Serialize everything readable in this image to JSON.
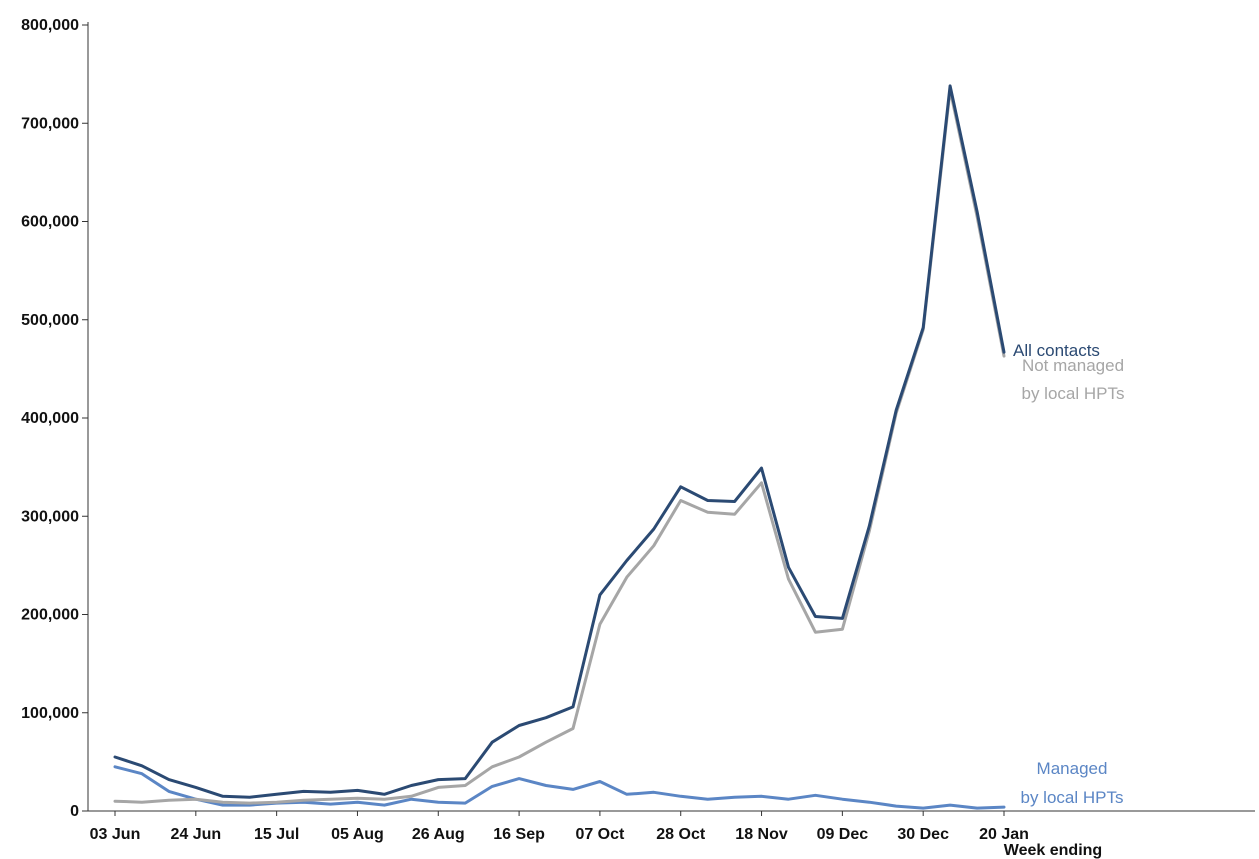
{
  "chart_data": {
    "type": "line",
    "title": "",
    "xlabel": "Week ending",
    "ylabel": "",
    "ylim": [
      0,
      800000
    ],
    "yticks": [
      0,
      100000,
      200000,
      300000,
      400000,
      500000,
      600000,
      700000,
      800000
    ],
    "ytick_labels": [
      "0",
      "100,000",
      "200,000",
      "300,000",
      "400,000",
      "500,000",
      "600,000",
      "700,000",
      "800,000"
    ],
    "x": [
      "03 Jun",
      "10 Jun",
      "17 Jun",
      "24 Jun",
      "01 Jul",
      "08 Jul",
      "15 Jul",
      "22 Jul",
      "29 Jul",
      "05 Aug",
      "12 Aug",
      "19 Aug",
      "26 Aug",
      "02 Sep",
      "09 Sep",
      "16 Sep",
      "23 Sep",
      "30 Sep",
      "07 Oct",
      "14 Oct",
      "21 Oct",
      "28 Oct",
      "04 Nov",
      "11 Nov",
      "18 Nov",
      "25 Nov",
      "02 Dec",
      "09 Dec",
      "16 Dec",
      "23 Dec",
      "30 Dec",
      "06 Jan",
      "13 Jan",
      "20 Jan"
    ],
    "xtick_labels": [
      "03 Jun",
      "24 Jun",
      "15 Jul",
      "05 Aug",
      "26 Aug",
      "16 Sep",
      "07 Oct",
      "28 Oct",
      "18 Nov",
      "09 Dec",
      "30 Dec",
      "20 Jan"
    ],
    "xtick_every": 3,
    "grid": false,
    "series": [
      {
        "name": "All contacts",
        "label": "All contacts",
        "color": "#2b4a73",
        "values": [
          55000,
          46000,
          32000,
          24000,
          15000,
          14000,
          17000,
          20000,
          19000,
          21000,
          17000,
          26000,
          32000,
          33000,
          70000,
          87000,
          95000,
          106000,
          220000,
          255000,
          287000,
          330000,
          316000,
          315000,
          349000,
          248000,
          198000,
          196000,
          290000,
          408000,
          492000,
          738000,
          610000,
          467000
        ]
      },
      {
        "name": "Not managed by local HPTs",
        "label_lines": [
          "Not managed",
          "by local HPTs"
        ],
        "color": "#a6a6a6",
        "values": [
          10000,
          9000,
          11000,
          12000,
          9000,
          8000,
          9000,
          11000,
          12000,
          13000,
          12000,
          15000,
          24000,
          26000,
          45000,
          55000,
          70000,
          84000,
          190000,
          238000,
          270000,
          316000,
          304000,
          302000,
          334000,
          236000,
          182000,
          185000,
          285000,
          405000,
          490000,
          734000,
          605000,
          463000
        ]
      },
      {
        "name": "Managed by local HPTs",
        "label_lines": [
          "Managed",
          "by local HPTs"
        ],
        "color": "#5b86c5",
        "values": [
          45000,
          38000,
          20000,
          12000,
          6000,
          6000,
          8000,
          9000,
          7000,
          9000,
          6000,
          12000,
          9000,
          8000,
          25000,
          33000,
          26000,
          22000,
          30000,
          17000,
          19000,
          15000,
          12000,
          14000,
          15000,
          12000,
          16000,
          12000,
          9000,
          5000,
          3000,
          6000,
          3000,
          4000
        ]
      }
    ]
  }
}
